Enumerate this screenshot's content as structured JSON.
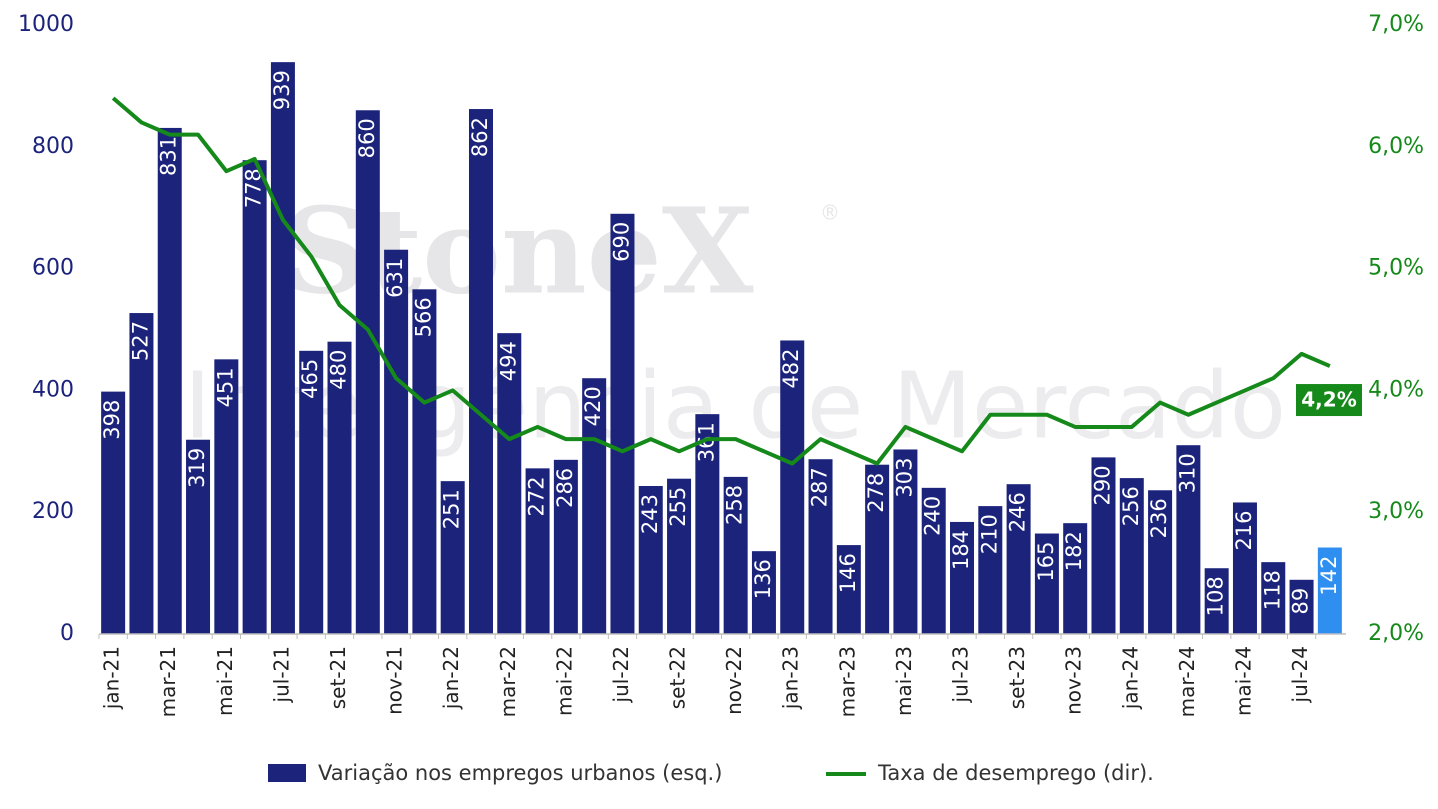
{
  "chart_data": {
    "type": "bar-line",
    "watermark": [
      "StoneX",
      "®",
      "Inteligência de Mercado"
    ],
    "categories": [
      "jan-21",
      null,
      "mar-21",
      null,
      "mai-21",
      null,
      "jul-21",
      null,
      "set-21",
      null,
      "nov-21",
      null,
      "jan-22",
      null,
      "mar-22",
      null,
      "mai-22",
      null,
      "jul-22",
      null,
      "set-22",
      null,
      "nov-22",
      null,
      "jan-23",
      null,
      "mar-23",
      null,
      "mai-23",
      null,
      "jul-23",
      null,
      "set-23",
      null,
      "nov-23",
      null,
      "jan-24",
      null,
      "mar-24",
      null,
      "mai-24",
      null,
      "jul-24",
      null
    ],
    "series": [
      {
        "name": "Variação nos empregos urbanos (esq.)",
        "color": "#1b237b",
        "colors": [
          "#1b237b",
          "#1b237b",
          "#1b237b",
          "#1b237b",
          "#1b237b",
          "#1b237b",
          "#1b237b",
          "#1b237b",
          "#1b237b",
          "#1b237b",
          "#1b237b",
          "#1b237b",
          "#1b237b",
          "#1b237b",
          "#1b237b",
          "#1b237b",
          "#1b237b",
          "#1b237b",
          "#1b237b",
          "#1b237b",
          "#1b237b",
          "#1b237b",
          "#1b237b",
          "#1b237b",
          "#1b237b",
          "#1b237b",
          "#1b237b",
          "#1b237b",
          "#1b237b",
          "#1b237b",
          "#1b237b",
          "#1b237b",
          "#1b237b",
          "#1b237b",
          "#1b237b",
          "#1b237b",
          "#1b237b",
          "#1b237b",
          "#1b237b",
          "#1b237b",
          "#1b237b",
          "#1b237b",
          "#1b237b",
          "#2e8ff0"
        ],
        "values": [
          398,
          527,
          831,
          319,
          451,
          778,
          939,
          465,
          480,
          860,
          631,
          566,
          251,
          862,
          494,
          272,
          286,
          420,
          690,
          243,
          255,
          361,
          258,
          136,
          482,
          287,
          146,
          278,
          303,
          240,
          184,
          210,
          246,
          165,
          182,
          290,
          256,
          236,
          310,
          108,
          216,
          118,
          89,
          142
        ]
      },
      {
        "name": "Taxa de desemprego (dir).",
        "color": "#15891a",
        "axis": "y2",
        "values": [
          6.4,
          6.2,
          6.1,
          6.1,
          5.8,
          5.9,
          5.4,
          5.1,
          4.7,
          4.5,
          4.1,
          3.9,
          4.0,
          3.8,
          3.6,
          3.7,
          3.6,
          3.6,
          3.5,
          3.6,
          3.5,
          3.6,
          3.6,
          3.5,
          3.4,
          3.6,
          3.5,
          3.4,
          3.7,
          3.6,
          3.5,
          3.8,
          3.8,
          3.8,
          3.7,
          3.7,
          3.7,
          3.9,
          3.8,
          3.9,
          4.0,
          4.1,
          4.3,
          4.2
        ],
        "end_label": "4,2%"
      }
    ],
    "ylim": [
      0,
      1000
    ],
    "yticks": [
      0,
      200,
      400,
      600,
      800,
      1000
    ],
    "y2lim": [
      2,
      7
    ],
    "y2ticks": [
      {
        "value": 2,
        "label": "2,0%"
      },
      {
        "value": 3,
        "label": "3,0%"
      },
      {
        "value": 4,
        "label": "4,0%"
      },
      {
        "value": 5,
        "label": "5,0%"
      },
      {
        "value": 6,
        "label": "6,0%"
      },
      {
        "value": 7,
        "label": "7,0%"
      }
    ],
    "grid": false
  }
}
